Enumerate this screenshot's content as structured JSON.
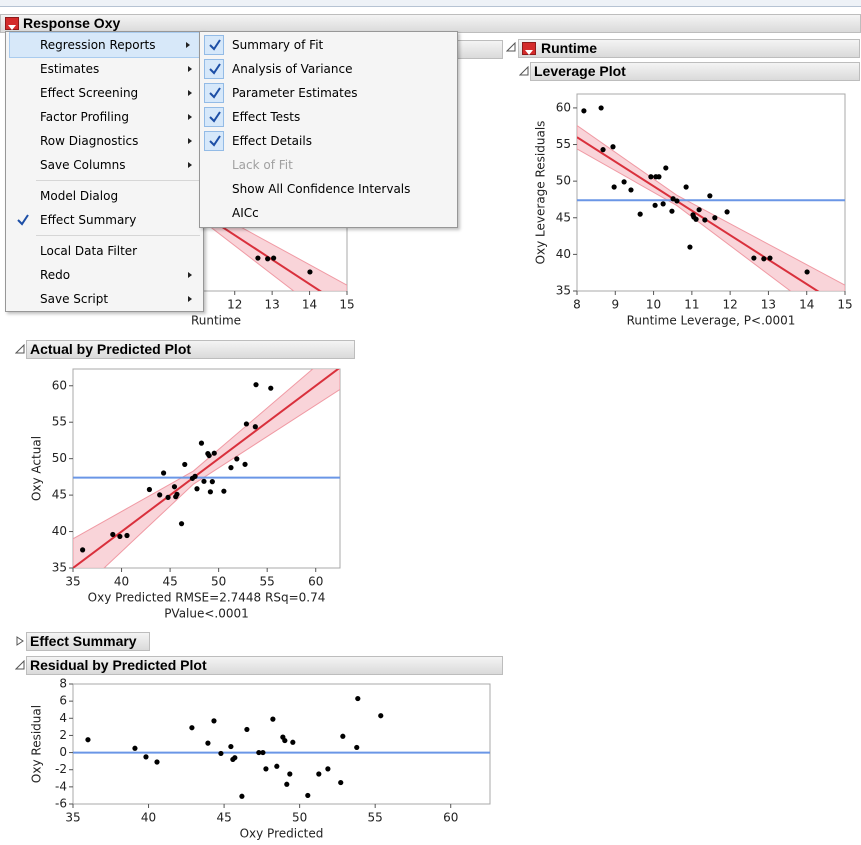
{
  "report": {
    "title": "Response Oxy"
  },
  "menu": {
    "groups": [
      [
        {
          "label": "Regression Reports",
          "submenu": true,
          "highlighted": true
        },
        {
          "label": "Estimates",
          "submenu": true
        },
        {
          "label": "Effect Screening",
          "submenu": true
        },
        {
          "label": "Factor Profiling",
          "submenu": true
        },
        {
          "label": "Row Diagnostics",
          "submenu": true
        },
        {
          "label": "Save Columns",
          "submenu": true
        }
      ],
      [
        {
          "label": "Model Dialog"
        },
        {
          "label": "Effect Summary",
          "checked": true
        }
      ],
      [
        {
          "label": "Local Data Filter"
        },
        {
          "label": "Redo",
          "submenu": true
        },
        {
          "label": "Save Script",
          "submenu": true
        }
      ]
    ]
  },
  "submenu": {
    "items": [
      {
        "label": "Summary of Fit",
        "checked": true
      },
      {
        "label": "Analysis of Variance",
        "checked": true
      },
      {
        "label": "Parameter Estimates",
        "checked": true
      },
      {
        "label": "Effect Tests",
        "checked": true
      },
      {
        "label": "Effect Details",
        "checked": true
      },
      {
        "label": "Lack of Fit",
        "enabled": false
      },
      {
        "label": "Show All Confidence Intervals"
      },
      {
        "label": "AICc"
      }
    ]
  },
  "whole_model_plot": {
    "type": "scatter",
    "xlabel": "Runtime",
    "xlim": [
      8,
      15
    ],
    "ylim": [
      35,
      61.9
    ],
    "xticks": [
      12,
      13,
      14,
      15
    ]
  },
  "runtime": {
    "title": "Runtime",
    "leverage_plot": {
      "type": "scatter",
      "title": "Leverage Plot",
      "xlabel": "Runtime Leverage, P<.0001",
      "ylabel": "Oxy Leverage Residuals",
      "xlim": [
        8,
        15
      ],
      "ylim": [
        35,
        61.9
      ],
      "xticks": [
        8,
        9,
        10,
        11,
        12,
        13,
        14,
        15
      ],
      "yticks": [
        35,
        40,
        45,
        50,
        55,
        60
      ],
      "x": [
        8.18,
        8.63,
        8.68,
        8.94,
        8.97,
        9.23,
        9.41,
        9.65,
        9.93,
        10.04,
        10.06,
        10.14,
        10.25,
        10.32,
        10.48,
        10.51,
        10.61,
        10.85,
        10.95,
        11.03,
        11.05,
        11.11,
        11.19,
        11.34,
        11.47,
        11.6,
        11.92,
        12.62,
        12.88,
        13.04,
        14.01
      ],
      "y": [
        59.6,
        60.0,
        54.3,
        54.7,
        49.2,
        49.9,
        48.8,
        45.5,
        50.6,
        46.7,
        50.6,
        50.6,
        46.9,
        51.8,
        45.9,
        47.6,
        47.3,
        49.2,
        41.0,
        45.4,
        45.1,
        44.8,
        46.1,
        44.7,
        48.0,
        45.0,
        45.8,
        39.5,
        39.4,
        39.5,
        37.6
      ],
      "fit": {
        "x": [
          8,
          15
        ],
        "y": [
          56.0,
          32.6
        ],
        "color": "#d9303c"
      },
      "band": {
        "x": [
          8,
          10.6,
          15
        ],
        "upper": [
          57.6,
          48.1,
          35.8
        ],
        "lower": [
          54.4,
          46.7,
          29.4
        ],
        "color": "#f8c9cf"
      },
      "ref_y": 47.4,
      "ref_color": "#6a96e6"
    }
  },
  "actual_plot": {
    "type": "scatter",
    "title": "Actual by Predicted Plot",
    "xlabel": [
      "Oxy Predicted RMSE=2.7448 RSq=0.74",
      "PValue<.0001"
    ],
    "ylabel": "Oxy Actual",
    "xlim": [
      35,
      62.5
    ],
    "ylim": [
      35,
      62.3
    ],
    "xticks": [
      35,
      40,
      45,
      50,
      55,
      60
    ],
    "yticks": [
      35,
      40,
      45,
      50,
      55,
      60
    ],
    "x": [
      35.99,
      39.1,
      39.83,
      40.56,
      42.87,
      43.93,
      44.33,
      44.79,
      45.45,
      45.58,
      45.71,
      46.18,
      46.51,
      47.3,
      47.57,
      47.77,
      48.23,
      48.49,
      48.89,
      49.02,
      49.15,
      49.35,
      49.55,
      50.54,
      51.27,
      51.87,
      52.72,
      52.86,
      53.78,
      53.85,
      55.37
    ],
    "y": [
      37.49,
      39.6,
      39.33,
      39.46,
      45.77,
      45.03,
      48.03,
      44.69,
      46.15,
      44.78,
      45.11,
      41.08,
      49.21,
      47.3,
      47.57,
      45.87,
      52.13,
      46.89,
      50.69,
      50.42,
      45.45,
      46.85,
      50.75,
      45.54,
      48.77,
      49.97,
      49.22,
      54.76,
      54.38,
      60.15,
      59.67
    ],
    "fit": {
      "x": [
        35,
        62.5
      ],
      "y": [
        35,
        62.5
      ],
      "color": "#d9303c"
    },
    "band": {
      "x": [
        35,
        47.4,
        62.5
      ],
      "upper": [
        39.0,
        48.3,
        65.5
      ],
      "lower": [
        31.0,
        46.5,
        59.5
      ],
      "color": "#f8c9cf"
    },
    "ref_y": 47.4,
    "ref_color": "#6a96e6"
  },
  "effect_summary": {
    "title": "Effect Summary"
  },
  "residual_plot": {
    "type": "scatter",
    "title": "Residual by Predicted Plot",
    "xlabel": "Oxy Predicted",
    "ylabel": "Oxy Residual",
    "xlim": [
      35,
      62.6
    ],
    "ylim": [
      -6,
      8
    ],
    "xticks": [
      35,
      40,
      45,
      50,
      55,
      60
    ],
    "yticks": [
      -6,
      -4,
      -2,
      0,
      2,
      4,
      6,
      8
    ],
    "x": [
      35.99,
      39.1,
      39.83,
      40.56,
      42.87,
      43.93,
      44.33,
      44.79,
      45.45,
      45.58,
      45.71,
      46.18,
      46.51,
      47.3,
      47.57,
      47.77,
      48.23,
      48.49,
      48.89,
      49.02,
      49.15,
      49.35,
      49.55,
      50.54,
      51.27,
      51.87,
      52.72,
      52.86,
      53.78,
      53.85,
      55.37
    ],
    "y": [
      1.5,
      0.5,
      -0.5,
      -1.1,
      2.9,
      1.1,
      3.7,
      -0.1,
      0.7,
      -0.8,
      -0.6,
      -5.1,
      2.7,
      0.0,
      0.0,
      -1.9,
      3.9,
      -1.6,
      1.8,
      1.4,
      -3.7,
      -2.5,
      1.2,
      -5.0,
      -2.5,
      -1.9,
      -3.5,
      1.9,
      0.6,
      6.3,
      4.3
    ],
    "ref_y": 0,
    "ref_color": "#6a96e6"
  }
}
